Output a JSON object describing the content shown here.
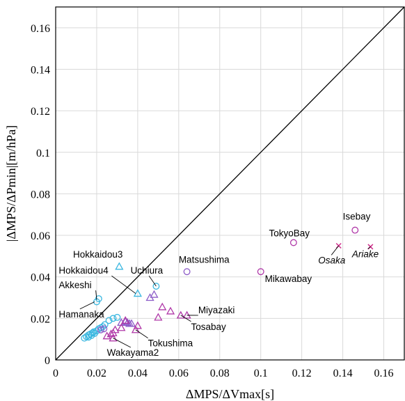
{
  "chart_data": {
    "type": "scatter",
    "title": "",
    "xlabel": "ΔMPS/ΔVmax[s]",
    "ylabel": "|ΔMPS/ΔPmin|[m/hPa]",
    "xlim": [
      0,
      0.17
    ],
    "ylim": [
      0,
      0.17
    ],
    "xticks": [
      0,
      0.02,
      0.04,
      0.06,
      0.08,
      0.1,
      0.12,
      0.14,
      0.16
    ],
    "xtick_labels": [
      "0",
      "0.02",
      "0.04",
      "0.06",
      "0.08",
      "0.1",
      "0.12",
      "0.14",
      "0.16"
    ],
    "yticks": [
      0,
      0.02,
      0.04,
      0.06,
      0.08,
      0.1,
      0.12,
      0.14,
      0.16
    ],
    "ytick_labels": [
      "0",
      "0.02",
      "0.04",
      "0.06",
      "0.08",
      "0.1",
      "0.12",
      "0.14",
      "0.16"
    ],
    "grid": true,
    "reference_line": {
      "from": [
        0,
        0
      ],
      "to": [
        0.17,
        0.17
      ],
      "color": "#000000"
    },
    "colors": {
      "cyan": "#3ab7e0",
      "purple": "#8d5cc8",
      "magenta": "#b038a8",
      "pink": "#d0308c"
    },
    "series": [
      {
        "marker": "circle",
        "color": "#3ab7e0",
        "points": [
          [
            0.014,
            0.0105
          ],
          [
            0.015,
            0.0112
          ],
          [
            0.016,
            0.012
          ],
          [
            0.017,
            0.0125
          ],
          [
            0.0175,
            0.0118
          ],
          [
            0.018,
            0.013
          ],
          [
            0.019,
            0.0128
          ],
          [
            0.02,
            0.014
          ],
          [
            0.021,
            0.015
          ],
          [
            0.022,
            0.0155
          ],
          [
            0.023,
            0.016
          ],
          [
            0.024,
            0.017
          ],
          [
            0.026,
            0.019
          ],
          [
            0.028,
            0.02
          ],
          [
            0.03,
            0.0205
          ],
          [
            0.016,
            0.011
          ],
          [
            0.0185,
            0.0135
          ],
          [
            0.02,
            0.028
          ],
          [
            0.021,
            0.0295
          ],
          [
            0.049,
            0.0355
          ]
        ]
      },
      {
        "marker": "triangle",
        "color": "#3ab7e0",
        "points": [
          [
            0.031,
            0.045
          ],
          [
            0.04,
            0.032
          ]
        ]
      },
      {
        "marker": "circle",
        "color": "#8d5cc8",
        "points": [
          [
            0.022,
            0.0145
          ],
          [
            0.0235,
            0.015
          ],
          [
            0.064,
            0.0425
          ]
        ]
      },
      {
        "marker": "triangle",
        "color": "#8d5cc8",
        "points": [
          [
            0.032,
            0.018
          ],
          [
            0.034,
            0.0185
          ],
          [
            0.035,
            0.018
          ],
          [
            0.036,
            0.0175
          ],
          [
            0.037,
            0.0175
          ],
          [
            0.046,
            0.03
          ],
          [
            0.048,
            0.0315
          ]
        ]
      },
      {
        "marker": "triangle",
        "color": "#b038a8",
        "points": [
          [
            0.025,
            0.0115
          ],
          [
            0.027,
            0.0125
          ],
          [
            0.028,
            0.013
          ],
          [
            0.029,
            0.0145
          ],
          [
            0.028,
            0.0105
          ],
          [
            0.032,
            0.0155
          ],
          [
            0.034,
            0.019
          ],
          [
            0.039,
            0.0145
          ],
          [
            0.04,
            0.0165
          ],
          [
            0.05,
            0.0205
          ],
          [
            0.052,
            0.0255
          ],
          [
            0.056,
            0.0235
          ],
          [
            0.061,
            0.0215
          ],
          [
            0.064,
            0.0215
          ]
        ]
      },
      {
        "marker": "circle",
        "color": "#b038a8",
        "points": [
          [
            0.1,
            0.0425
          ],
          [
            0.116,
            0.0565
          ],
          [
            0.146,
            0.0625
          ]
        ]
      },
      {
        "marker": "x",
        "color": "#d0308c",
        "points": [
          [
            0.138,
            0.055
          ],
          [
            0.1535,
            0.0545
          ]
        ]
      }
    ],
    "annotations": [
      {
        "text": "Isebay",
        "x": 0.14,
        "y": 0.0675,
        "italic": false,
        "leader": null
      },
      {
        "text": "TokyoBay",
        "x": 0.104,
        "y": 0.0595,
        "italic": false,
        "leader": null
      },
      {
        "text": "Osaka",
        "x": 0.128,
        "y": 0.0465,
        "italic": true,
        "leader": [
          0.138,
          0.055
        ]
      },
      {
        "text": "Ariake",
        "x": 0.1445,
        "y": 0.0495,
        "italic": true,
        "leader": [
          0.1535,
          0.0545
        ]
      },
      {
        "text": "Mikawabay",
        "x": 0.102,
        "y": 0.0375,
        "italic": false,
        "leader": null
      },
      {
        "text": "Matsushima",
        "x": 0.06,
        "y": 0.0468,
        "italic": false,
        "leader": null
      },
      {
        "text": "Hokkaidou3",
        "x": 0.0085,
        "y": 0.0493,
        "italic": false,
        "leader": null
      },
      {
        "text": "Uchiura",
        "x": 0.0365,
        "y": 0.0415,
        "italic": false,
        "leader": [
          0.049,
          0.0355
        ]
      },
      {
        "text": "Hokkaidou4",
        "x": 0.0015,
        "y": 0.0415,
        "italic": false,
        "leader": [
          0.039,
          0.032
        ]
      },
      {
        "text": "Akkeshi",
        "x": 0.0015,
        "y": 0.0345,
        "italic": false,
        "leader": [
          0.02,
          0.029
        ]
      },
      {
        "text": "Hamanaka",
        "x": 0.0015,
        "y": 0.0205,
        "italic": false,
        "leader": [
          0.019,
          0.028
        ]
      },
      {
        "text": "Miyazaki",
        "x": 0.0695,
        "y": 0.0225,
        "italic": false,
        "leader": [
          0.064,
          0.0215
        ]
      },
      {
        "text": "Tosabay",
        "x": 0.066,
        "y": 0.0145,
        "italic": false,
        "leader": [
          0.061,
          0.0215
        ]
      },
      {
        "text": "Tokushima",
        "x": 0.045,
        "y": 0.0065,
        "italic": false,
        "leader": [
          0.039,
          0.0145
        ]
      },
      {
        "text": "Wakayama2",
        "x": 0.025,
        "y": 0.002,
        "italic": false,
        "leader": [
          0.028,
          0.0105
        ]
      }
    ]
  }
}
